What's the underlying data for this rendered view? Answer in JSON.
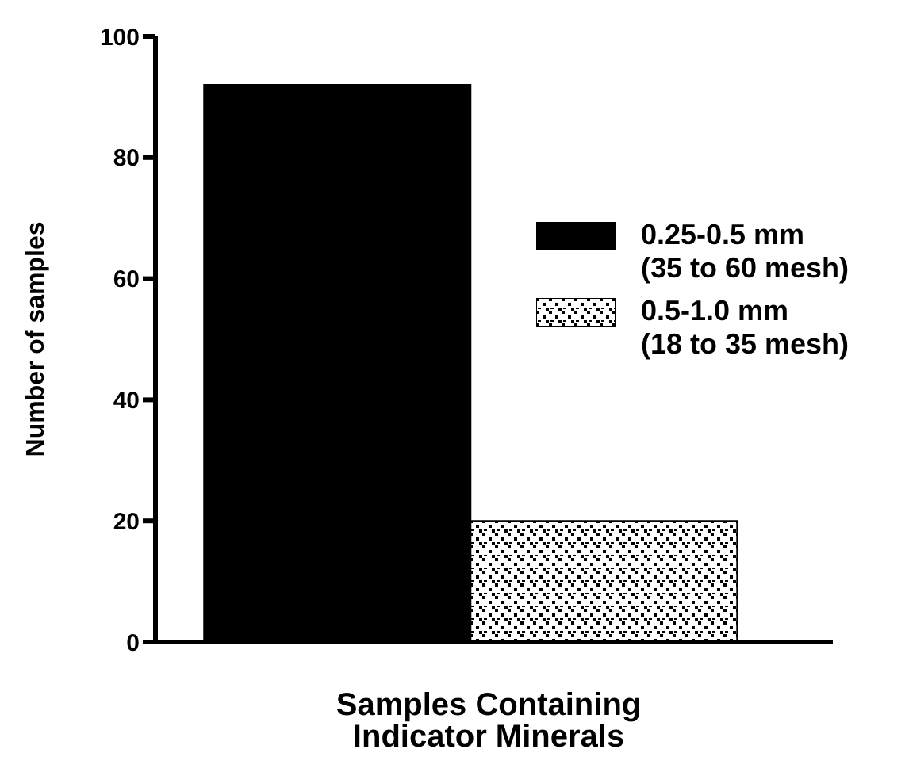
{
  "chart_data": {
    "type": "bar",
    "xlabel": "Samples Containing Indicator Minerals",
    "ylabel": "Number of samples",
    "categories": [
      null
    ],
    "series": [
      {
        "name": "0.25-0.5 mm (35 to 60 mesh)",
        "color": "#000000",
        "values": [
          92
        ]
      },
      {
        "name": "0.5-1.0 mm (18 to 35 mesh)",
        "color": "#000000",
        "values": [
          20
        ]
      }
    ],
    "ylim": [
      0,
      100
    ],
    "yticks": [
      0,
      20,
      40,
      60,
      80,
      100
    ],
    "grid": false,
    "legend": "right"
  }
}
